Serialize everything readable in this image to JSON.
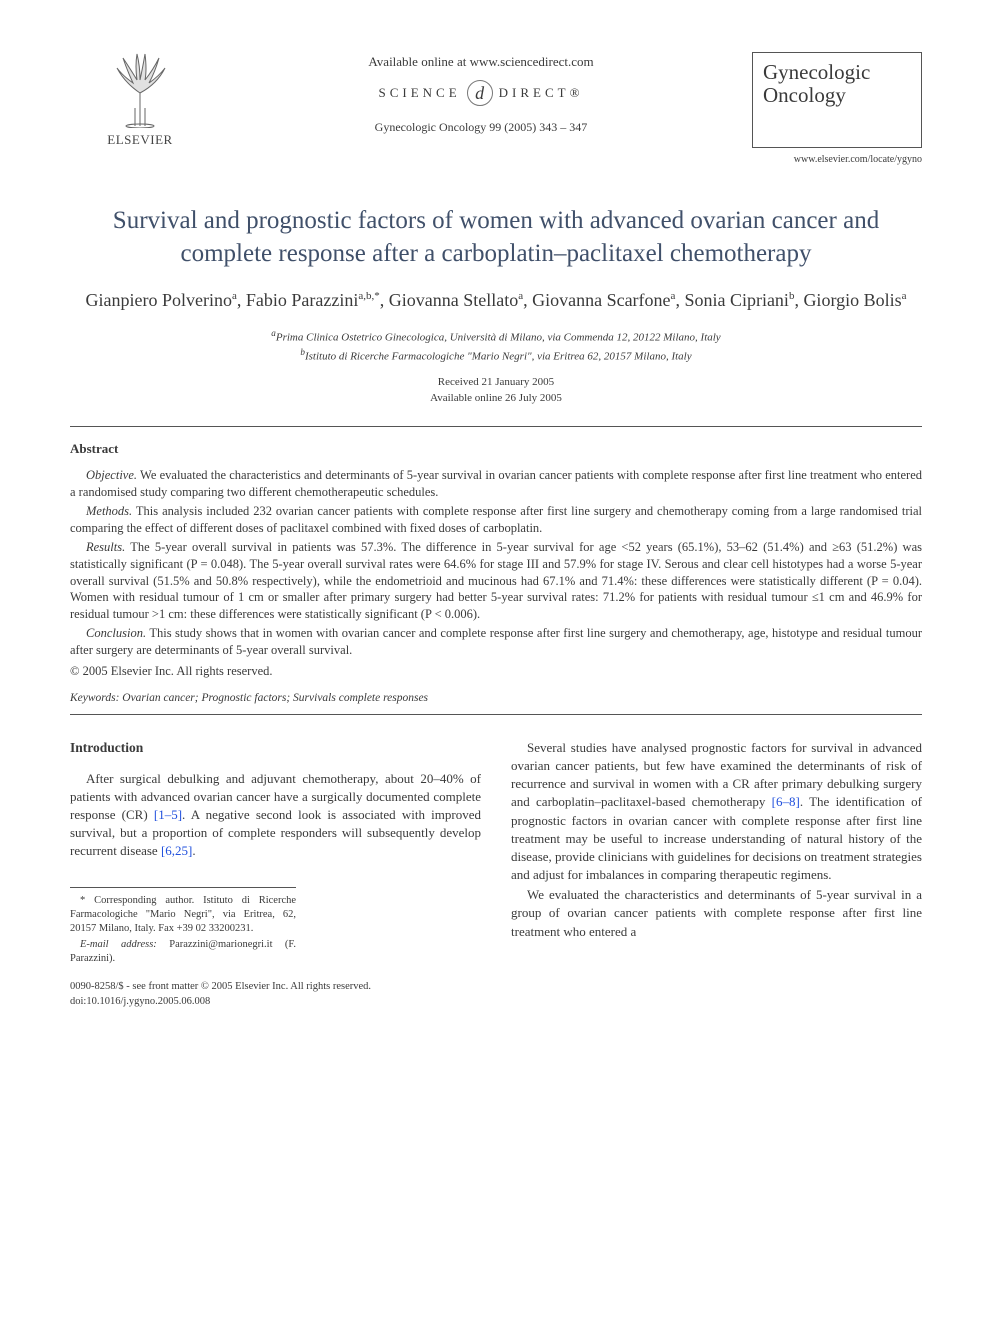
{
  "header": {
    "publisher_label": "ELSEVIER",
    "available_text": "Available online at www.sciencedirect.com",
    "sciencedirect_left": "SCIENCE",
    "sciencedirect_right": "DIRECT®",
    "citation": "Gynecologic Oncology 99 (2005) 343 – 347",
    "journal_name_line1": "Gynecologic",
    "journal_name_line2": "Oncology",
    "journal_url": "www.elsevier.com/locate/ygyno"
  },
  "title": "Survival and prognostic factors of women with advanced ovarian cancer and complete response after a carboplatin–paclitaxel chemotherapy",
  "authors_html": "Gianpiero Polverino<sup>a</sup>, Fabio Parazzini<sup>a,b,*</sup>, Giovanna Stellato<sup>a</sup>, Giovanna Scarfone<sup>a</sup>, Sonia Cipriani<sup>b</sup>, Giorgio Bolis<sup>a</sup>",
  "affiliations": {
    "a": "Prima Clinica Ostetrico Ginecologica, Università di Milano, via Commenda 12, 20122 Milano, Italy",
    "b": "Istituto di Ricerche Farmacologiche \"Mario Negri\", via Eritrea 62, 20157 Milano, Italy"
  },
  "dates": {
    "received": "Received 21 January 2005",
    "online": "Available online 26 July 2005"
  },
  "abstract": {
    "heading": "Abstract",
    "objective": "We evaluated the characteristics and determinants of 5-year survival in ovarian cancer patients with complete response after first line treatment who entered a randomised study comparing two different chemotherapeutic schedules.",
    "methods": "This analysis included 232 ovarian cancer patients with complete response after first line surgery and chemotherapy coming from a large randomised trial comparing the effect of different doses of paclitaxel combined with fixed doses of carboplatin.",
    "results": "The 5-year overall survival in patients was 57.3%. The difference in 5-year survival for age <52 years (65.1%), 53–62 (51.4%) and ≥63 (51.2%) was statistically significant (P = 0.048). The 5-year overall survival rates were 64.6% for stage III and 57.9% for stage IV. Serous and clear cell histotypes had a worse 5-year overall survival (51.5% and 50.8% respectively), while the endometrioid and mucinous had 67.1% and 71.4%: these differences were statistically different (P = 0.04). Women with residual tumour of 1 cm or smaller after primary surgery had better 5-year survival rates: 71.2% for patients with residual tumour ≤1 cm and 46.9% for residual tumour >1 cm: these differences were statistically significant (P < 0.006).",
    "conclusion": "This study shows that in women with ovarian cancer and complete response after first line surgery and chemotherapy, age, histotype and residual tumour after surgery are determinants of 5-year overall survival.",
    "copyright": "© 2005 Elsevier Inc. All rights reserved."
  },
  "keywords": "Keywords: Ovarian cancer; Prognostic factors; Survivals complete responses",
  "intro": {
    "heading": "Introduction",
    "p1_a": "After surgical debulking and adjuvant chemotherapy, about 20–40% of patients with advanced ovarian cancer have a surgically documented complete response (CR) ",
    "p1_ref1": "[1–5]",
    "p1_b": ". A negative second look is associated with improved survival, but a proportion of complete responders will subsequently develop recurrent disease ",
    "p1_ref2": "[6,25]",
    "p1_c": ".",
    "p2_a": "Several studies have analysed prognostic factors for survival in advanced ovarian cancer patients, but few have examined the determinants of risk of recurrence and survival in women with a CR after primary debulking surgery and carboplatin–paclitaxel-based chemotherapy ",
    "p2_ref1": "[6–8]",
    "p2_b": ". The identification of prognostic factors in ovarian cancer with complete response after first line treatment may be useful to increase understanding of natural history of the disease, provide clinicians with guidelines for decisions on treatment strategies and adjust for imbalances in comparing therapeutic regimens.",
    "p3": "We evaluated the characteristics and determinants of 5-year survival in a group of ovarian cancer patients with complete response after first line treatment who entered a"
  },
  "footnotes": {
    "corr": "* Corresponding author. Istituto di Ricerche Farmacologiche \"Mario Negri\", via Eritrea, 62, 20157 Milano, Italy. Fax +39 02 33200231.",
    "email_label": "E-mail address:",
    "email_value": "Parazzini@marionegri.it (F. Parazzini)."
  },
  "bottom": {
    "issn": "0090-8258/$ - see front matter © 2005 Elsevier Inc. All rights reserved.",
    "doi": "doi:10.1016/j.ygyno.2005.06.008"
  },
  "style": {
    "title_color": "#40506a",
    "ref_color": "#2050dd",
    "text_color": "#3a3a3a",
    "rule_color": "#555555"
  }
}
